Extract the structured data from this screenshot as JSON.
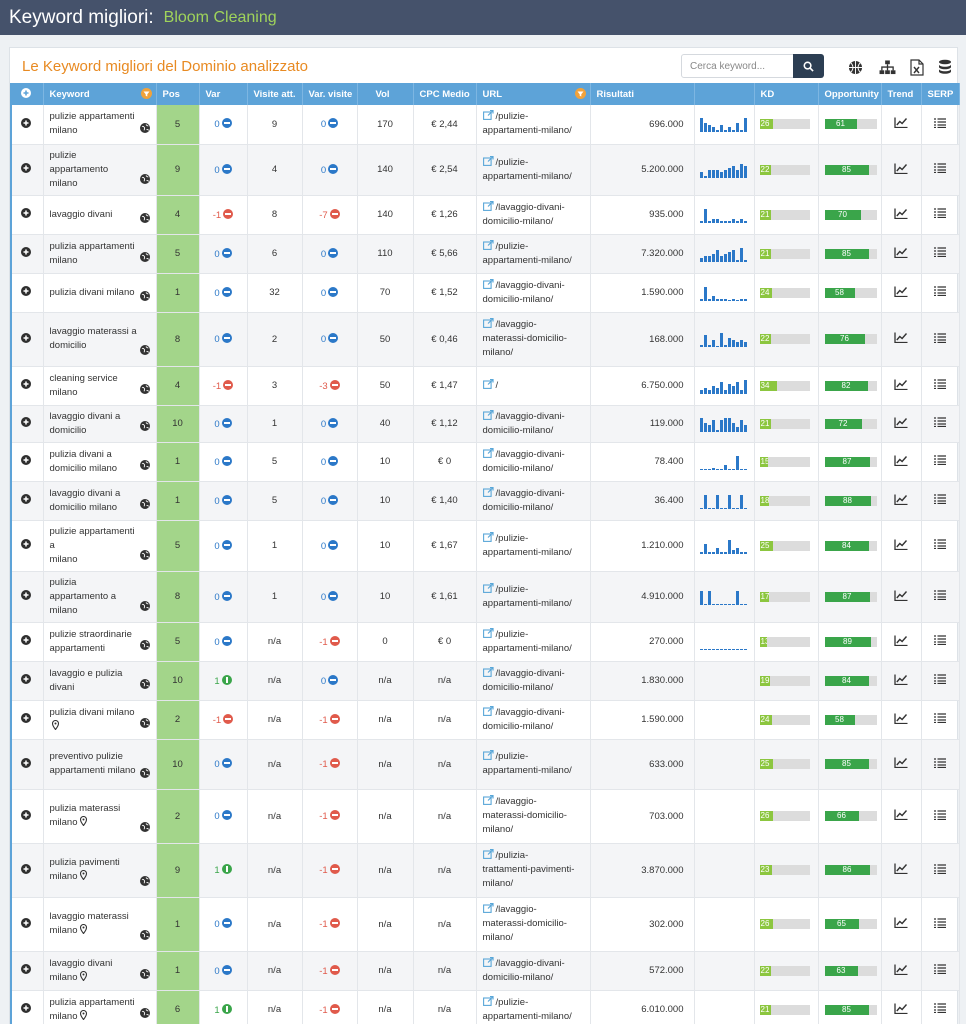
{
  "header": {
    "title": "Keyword migliori:",
    "domain": "Bloom Cleaning"
  },
  "panel": {
    "title": "Le Keyword migliori del Dominio analizzato"
  },
  "search": {
    "placeholder": "Cerca keyword..."
  },
  "toolbar_icons": [
    "basketball-icon",
    "sitemap-icon",
    "excel-export-icon",
    "database-icon"
  ],
  "columns": {
    "keyword": "Keyword",
    "pos": "Pos",
    "var": "Var",
    "visits": "Visite att.",
    "var_visits": "Var. visite",
    "vol": "Vol",
    "cpc": "CPC Medio",
    "url": "URL",
    "results": "Risultati",
    "kd": "KD",
    "opportunity": "Opportunity",
    "trend": "Trend",
    "serp": "SERP"
  },
  "colors": {
    "topbar": "#45526b",
    "accent_orange": "#e88a22",
    "header_blue": "#5da3d8",
    "pos_green": "#a3d58a",
    "kd_green": "#8cc63f",
    "opp_green": "#3aa54a"
  },
  "rows": [
    {
      "kw1": "pulizie appartamenti",
      "kw2": "milano",
      "pin": false,
      "pos": "5",
      "var": "0",
      "var_t": "0",
      "visits": "9",
      "vv": "0",
      "vv_t": "0",
      "vol": "170",
      "cpc": "€ 2,44",
      "url1": "/pulizie-",
      "url2": "appartamenti-milano/",
      "url3": "",
      "res": "696.000",
      "kd": "26",
      "opp": "61",
      "spark": [
        6,
        4,
        3,
        2,
        1,
        3,
        1,
        2,
        1,
        4,
        1,
        6
      ]
    },
    {
      "kw1": "pulizie appartamento",
      "kw2": "milano",
      "pin": false,
      "pos": "9",
      "var": "0",
      "var_t": "0",
      "visits": "4",
      "vv": "0",
      "vv_t": "0",
      "vol": "140",
      "cpc": "€ 2,54",
      "url1": "/pulizie-",
      "url2": "appartamenti-milano/",
      "url3": "",
      "res": "5.200.000",
      "kd": "22",
      "opp": "85",
      "spark": [
        3,
        1,
        4,
        4,
        4,
        3,
        4,
        5,
        6,
        4,
        7,
        6
      ]
    },
    {
      "kw1": "lavaggio divani",
      "kw2": "",
      "pin": false,
      "pos": "4",
      "var": "-1",
      "var_t": "n",
      "visits": "8",
      "vv": "-7",
      "vv_t": "n",
      "vol": "140",
      "cpc": "€ 1,26",
      "url1": "/lavaggio-divani-",
      "url2": "domicilio-milano/",
      "url3": "",
      "res": "935.000",
      "kd": "21",
      "opp": "70",
      "spark": [
        1,
        7,
        1,
        2,
        2,
        1,
        1,
        1,
        2,
        1,
        2,
        1
      ]
    },
    {
      "kw1": "pulizia appartamenti",
      "kw2": "milano",
      "pin": false,
      "pos": "5",
      "var": "0",
      "var_t": "0",
      "visits": "6",
      "vv": "0",
      "vv_t": "0",
      "vol": "110",
      "cpc": "€ 5,66",
      "url1": "/pulizie-",
      "url2": "appartamenti-milano/",
      "url3": "",
      "res": "7.320.000",
      "kd": "21",
      "opp": "85",
      "spark": [
        2,
        3,
        3,
        4,
        6,
        3,
        4,
        5,
        6,
        1,
        7,
        1
      ]
    },
    {
      "kw1": "pulizia divani milano",
      "kw2": "",
      "pin": false,
      "pos": "1",
      "var": "0",
      "var_t": "0",
      "visits": "32",
      "vv": "0",
      "vv_t": "0",
      "vol": "70",
      "cpc": "€ 1,52",
      "url1": "/lavaggio-divani-",
      "url2": "domicilio-milano/",
      "url3": "",
      "res": "1.590.000",
      "kd": "24",
      "opp": "58",
      "spark": [
        1,
        6,
        1,
        2,
        1,
        1,
        1,
        0,
        1,
        0,
        1,
        1
      ]
    },
    {
      "kw1": "lavaggio materassi a",
      "kw2": "domicilio",
      "pin": false,
      "pos": "8",
      "var": "0",
      "var_t": "0",
      "visits": "2",
      "vv": "0",
      "vv_t": "0",
      "vol": "50",
      "cpc": "€ 0,46",
      "url1": "/lavaggio-",
      "url2": "materassi-domicilio-",
      "url3": "milano/",
      "res": "168.000",
      "kd": "22",
      "opp": "76",
      "spark": [
        1,
        5,
        1,
        3,
        0,
        6,
        1,
        4,
        3,
        2,
        3,
        2
      ]
    },
    {
      "kw1": "cleaning service",
      "kw2": "milano",
      "pin": false,
      "pos": "4",
      "var": "-1",
      "var_t": "n",
      "visits": "3",
      "vv": "-3",
      "vv_t": "n",
      "vol": "50",
      "cpc": "€ 1,47",
      "url1": "/",
      "url2": "",
      "url3": "",
      "res": "6.750.000",
      "kd": "34",
      "opp": "82",
      "spark": [
        2,
        3,
        2,
        4,
        3,
        6,
        2,
        5,
        4,
        6,
        2,
        7
      ]
    },
    {
      "kw1": "lavaggio divani a",
      "kw2": "domicilio",
      "pin": false,
      "pos": "10",
      "var": "0",
      "var_t": "0",
      "visits": "1",
      "vv": "0",
      "vv_t": "0",
      "vol": "40",
      "cpc": "€ 1,12",
      "url1": "/lavaggio-divani-",
      "url2": "domicilio-milano/",
      "url3": "",
      "res": "119.000",
      "kd": "21",
      "opp": "72",
      "spark": [
        6,
        4,
        3,
        5,
        1,
        5,
        6,
        6,
        4,
        2,
        5,
        3
      ]
    },
    {
      "kw1": "pulizia divani a",
      "kw2": "domicilio milano",
      "pin": false,
      "pos": "1",
      "var": "0",
      "var_t": "0",
      "visits": "5",
      "vv": "0",
      "vv_t": "0",
      "vol": "10",
      "cpc": "€ 0",
      "url1": "/lavaggio-divani-",
      "url2": "domicilio-milano/",
      "url3": "",
      "res": "78.400",
      "kd": "15",
      "opp": "87",
      "spark": [
        0,
        0,
        0,
        1,
        0,
        0,
        2,
        0,
        0,
        6,
        0,
        0
      ]
    },
    {
      "kw1": "lavaggio divani a",
      "kw2": "domicilio milano",
      "pin": false,
      "pos": "1",
      "var": "0",
      "var_t": "0",
      "visits": "5",
      "vv": "0",
      "vv_t": "0",
      "vol": "10",
      "cpc": "€ 1,40",
      "url1": "/lavaggio-divani-",
      "url2": "domicilio-milano/",
      "url3": "",
      "res": "36.400",
      "kd": "18",
      "opp": "88",
      "spark": [
        0,
        6,
        0,
        0,
        6,
        0,
        0,
        6,
        0,
        0,
        6,
        0
      ]
    },
    {
      "kw1": "pulizie appartamenti a",
      "kw2": "milano",
      "pin": false,
      "pos": "5",
      "var": "0",
      "var_t": "0",
      "visits": "1",
      "vv": "0",
      "vv_t": "0",
      "vol": "10",
      "cpc": "€ 1,67",
      "url1": "/pulizie-",
      "url2": "appartamenti-milano/",
      "url3": "",
      "res": "1.210.000",
      "kd": "25",
      "opp": "84",
      "spark": [
        1,
        5,
        1,
        1,
        3,
        1,
        1,
        7,
        2,
        3,
        1,
        1
      ]
    },
    {
      "kw1": "pulizia appartamento a",
      "kw2": "milano",
      "pin": false,
      "pos": "8",
      "var": "0",
      "var_t": "0",
      "visits": "1",
      "vv": "0",
      "vv_t": "0",
      "vol": "10",
      "cpc": "€ 1,61",
      "url1": "/pulizie-",
      "url2": "appartamenti-milano/",
      "url3": "",
      "res": "4.910.000",
      "kd": "17",
      "opp": "87",
      "spark": [
        8,
        0,
        8,
        0,
        0,
        0,
        0,
        0,
        0,
        8,
        0,
        0
      ]
    },
    {
      "kw1": "pulizie straordinarie",
      "kw2": "appartamenti",
      "pin": false,
      "pos": "5",
      "var": "0",
      "var_t": "0",
      "visits": "n/a",
      "vv": "-1",
      "vv_t": "n",
      "vol": "0",
      "cpc": "€ 0",
      "url1": "/pulizie-",
      "url2": "appartamenti-milano/",
      "url3": "",
      "res": "270.000",
      "kd": "13",
      "opp": "89",
      "spark": [
        0,
        0,
        0,
        0,
        0,
        0,
        0,
        0,
        0,
        0,
        0,
        0
      ]
    },
    {
      "kw1": "lavaggio e pulizia",
      "kw2": "divani",
      "pin": false,
      "pos": "10",
      "var": "1",
      "var_t": "p",
      "visits": "n/a",
      "vv": "0",
      "vv_t": "0",
      "vol": "n/a",
      "cpc": "n/a",
      "url1": "/lavaggio-divani-",
      "url2": "domicilio-milano/",
      "url3": "",
      "res": "1.830.000",
      "kd": "19",
      "opp": "84",
      "spark": null
    },
    {
      "kw1": "pulizia divani milano",
      "kw2": "",
      "pin": true,
      "pos": "2",
      "var": "-1",
      "var_t": "n",
      "visits": "n/a",
      "vv": "-1",
      "vv_t": "n",
      "vol": "n/a",
      "cpc": "n/a",
      "url1": "/lavaggio-divani-",
      "url2": "domicilio-milano/",
      "url3": "",
      "res": "1.590.000",
      "kd": "24",
      "opp": "58",
      "spark": null
    },
    {
      "kw1": "preventivo pulizie",
      "kw2": "appartamenti milano",
      "pin": false,
      "pos": "10",
      "var": "0",
      "var_t": "0",
      "visits": "n/a",
      "vv": "-1",
      "vv_t": "n",
      "vol": "n/a",
      "cpc": "n/a",
      "url1": "/pulizie-",
      "url2": "appartamenti-milano/",
      "url3": "",
      "res": "633.000",
      "kd": "25",
      "opp": "85",
      "spark": null
    },
    {
      "kw1": "pulizia materassi",
      "kw2": "milano",
      "pin": true,
      "pos": "2",
      "var": "0",
      "var_t": "0",
      "visits": "n/a",
      "vv": "-1",
      "vv_t": "n",
      "vol": "n/a",
      "cpc": "n/a",
      "url1": "/lavaggio-",
      "url2": "materassi-domicilio-",
      "url3": "milano/",
      "res": "703.000",
      "kd": "26",
      "opp": "66",
      "spark": null
    },
    {
      "kw1": "pulizia pavimenti",
      "kw2": "milano",
      "pin": true,
      "pos": "9",
      "var": "1",
      "var_t": "p",
      "visits": "n/a",
      "vv": "-1",
      "vv_t": "n",
      "vol": "n/a",
      "cpc": "n/a",
      "url1": "/pulizia-",
      "url2": "trattamenti-pavimenti-",
      "url3": "milano/",
      "res": "3.870.000",
      "kd": "23",
      "opp": "86",
      "spark": null
    },
    {
      "kw1": "lavaggio materassi",
      "kw2": "milano",
      "pin": true,
      "pos": "1",
      "var": "0",
      "var_t": "0",
      "visits": "n/a",
      "vv": "-1",
      "vv_t": "n",
      "vol": "n/a",
      "cpc": "n/a",
      "url1": "/lavaggio-",
      "url2": "materassi-domicilio-",
      "url3": "milano/",
      "res": "302.000",
      "kd": "26",
      "opp": "65",
      "spark": null
    },
    {
      "kw1": "lavaggio divani milano",
      "kw2": "",
      "pin": true,
      "pos": "1",
      "var": "0",
      "var_t": "0",
      "visits": "n/a",
      "vv": "-1",
      "vv_t": "n",
      "vol": "n/a",
      "cpc": "n/a",
      "url1": "/lavaggio-divani-",
      "url2": "domicilio-milano/",
      "url3": "",
      "res": "572.000",
      "kd": "22",
      "opp": "63",
      "spark": null
    },
    {
      "kw1": "pulizia appartamenti",
      "kw2": "milano",
      "pin": true,
      "pos": "6",
      "var": "1",
      "var_t": "p",
      "visits": "n/a",
      "vv": "-1",
      "vv_t": "n",
      "vol": "n/a",
      "cpc": "n/a",
      "url1": "/pulizie-",
      "url2": "appartamenti-milano/",
      "url3": "",
      "res": "6.010.000",
      "kd": "21",
      "opp": "85",
      "spark": null
    }
  ]
}
